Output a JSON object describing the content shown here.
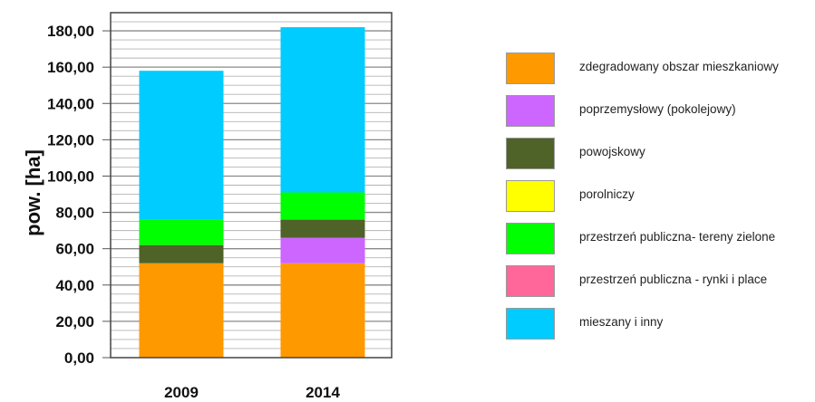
{
  "chart_data": {
    "type": "bar",
    "stacked": true,
    "categories": [
      "2009",
      "2014"
    ],
    "ylabel": "pow. [ha]",
    "ylim": [
      0,
      190
    ],
    "yticks": [
      "0,00",
      "20,00",
      "40,00",
      "60,00",
      "80,00",
      "100,00",
      "120,00",
      "140,00",
      "160,00",
      "180,00"
    ],
    "grid": true,
    "legend_position": "right",
    "series": [
      {
        "name": "zdegradowany obszar mieszkaniowy",
        "color": "#FF9900",
        "values": [
          52,
          52
        ]
      },
      {
        "name": "poprzemysłowy (pokolejowy)",
        "color": "#CC66FF",
        "values": [
          0,
          14
        ]
      },
      {
        "name": "powojskowy",
        "color": "#4F6228",
        "values": [
          10,
          10
        ]
      },
      {
        "name": "porolniczy",
        "color": "#FFFF00",
        "values": [
          0,
          0
        ]
      },
      {
        "name": "przestrzeń publiczna- tereny zielone",
        "color": "#00FF00",
        "values": [
          14,
          15
        ]
      },
      {
        "name": "przestrzeń publiczna - rynki i place",
        "color": "#FF6699",
        "values": [
          0,
          0
        ]
      },
      {
        "name": "mieszany i inny",
        "color": "#00CCFF",
        "values": [
          82,
          91
        ]
      }
    ]
  }
}
